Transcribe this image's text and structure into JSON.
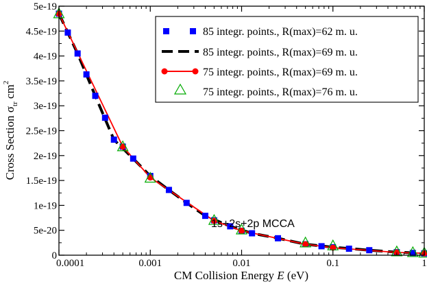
{
  "chart_data": {
    "type": "line",
    "xscale": "log",
    "xlim": [
      0.0001,
      1
    ],
    "ylim": [
      0,
      5e-19
    ],
    "x_ticks": [
      {
        "value": 0.0001,
        "label": "0.0001"
      },
      {
        "value": 0.001,
        "label": "0.001"
      },
      {
        "value": 0.01,
        "label": "0.01"
      },
      {
        "value": 0.1,
        "label": "0.1"
      },
      {
        "value": 1,
        "label": "1"
      }
    ],
    "y_ticks": [
      {
        "value": 0,
        "label": "0"
      },
      {
        "value": 5e-20,
        "label": "5e-20"
      },
      {
        "value": 1e-19,
        "label": "1e-19"
      },
      {
        "value": 1.5e-19,
        "label": "1.5e-19"
      },
      {
        "value": 2e-19,
        "label": "2e-19"
      },
      {
        "value": 2.5e-19,
        "label": "2.5e-19"
      },
      {
        "value": 3e-19,
        "label": "3e-19"
      },
      {
        "value": 3.5e-19,
        "label": "3.5e-19"
      },
      {
        "value": 4e-19,
        "label": "4e-19"
      },
      {
        "value": 4.5e-19,
        "label": "4.5e-19"
      },
      {
        "value": 5e-19,
        "label": "5e-19"
      }
    ],
    "xlabel_prefix": "CM Collision Energy ",
    "xlabel_var": "E",
    "xlabel_suffix": " (eV)",
    "ylabel_main": "Cross Section  σ",
    "ylabel_sub": "tr",
    "ylabel_unit": "  cm",
    "ylabel_sup": "2",
    "annotation": "1s+2s+2p MCCA",
    "colors": {
      "blue": "#0000ff",
      "black": "#000000",
      "red": "#ff0000",
      "green": "#00aa00"
    },
    "series": [
      {
        "name": "85 integr. points., R(max)=62 m. u.",
        "style": "blue-squares",
        "x": [
          0.0001,
          0.000125,
          0.00016,
          0.0002,
          0.00025,
          0.00032,
          0.0004,
          0.0005,
          0.00065,
          0.001,
          0.0016,
          0.0025,
          0.004,
          0.005,
          0.0075,
          0.01,
          0.013,
          0.025,
          0.05,
          0.075,
          0.1,
          0.15,
          0.25,
          0.5,
          0.75,
          1
        ],
        "y": [
          4.85e-19,
          4.47e-19,
          4.05e-19,
          3.63e-19,
          3.2e-19,
          2.76e-19,
          2.32e-19,
          2.18e-19,
          1.94e-19,
          1.59e-19,
          1.31e-19,
          1.05e-19,
          7.9e-20,
          7e-20,
          5.8e-20,
          4.9e-20,
          4.4e-20,
          3.4e-20,
          2.2e-20,
          1.8e-20,
          1.6e-20,
          1.3e-20,
          1e-20,
          6e-21,
          4.5e-21,
          3.8e-21
        ]
      },
      {
        "name": "85 integr. points., R(max)=69 m. u.",
        "style": "black-dashed",
        "x": [
          0.0001,
          0.00016,
          0.00025,
          0.0004,
          0.00065,
          0.001,
          0.0016,
          0.0025,
          0.004,
          0.0075,
          0.013,
          0.025,
          0.05,
          0.1,
          0.25,
          0.5,
          1
        ],
        "y": [
          4.85e-19,
          4.05e-19,
          3.2e-19,
          2.32e-19,
          1.94e-19,
          1.59e-19,
          1.31e-19,
          1.05e-19,
          7.9e-20,
          5.8e-20,
          4.4e-20,
          3.4e-20,
          2.2e-20,
          1.6e-20,
          1e-20,
          6e-21,
          3.8e-21
        ]
      },
      {
        "name": "75 integr. points., R(max)=69 m. u.",
        "style": "red-line-circles",
        "x": [
          0.0001,
          0.0005,
          0.001,
          0.005,
          0.01,
          0.05,
          0.1,
          0.5,
          1
        ],
        "y": [
          4.85e-19,
          2.18e-19,
          1.56e-19,
          6.9e-20,
          4.9e-20,
          2.2e-20,
          1.5e-20,
          5.5e-21,
          3.8e-21
        ]
      },
      {
        "name": "75 integr. points., R(max)=76 m. u.",
        "style": "green-triangles",
        "x": [
          0.0001,
          0.0005,
          0.001,
          0.005,
          0.01,
          0.05,
          0.1,
          0.5,
          0.75,
          1
        ],
        "y": [
          4.85e-19,
          2.18e-19,
          1.55e-19,
          7e-20,
          5.1e-20,
          2.5e-20,
          1.9e-20,
          7e-21,
          5.5e-21,
          4.5e-21
        ]
      }
    ]
  }
}
